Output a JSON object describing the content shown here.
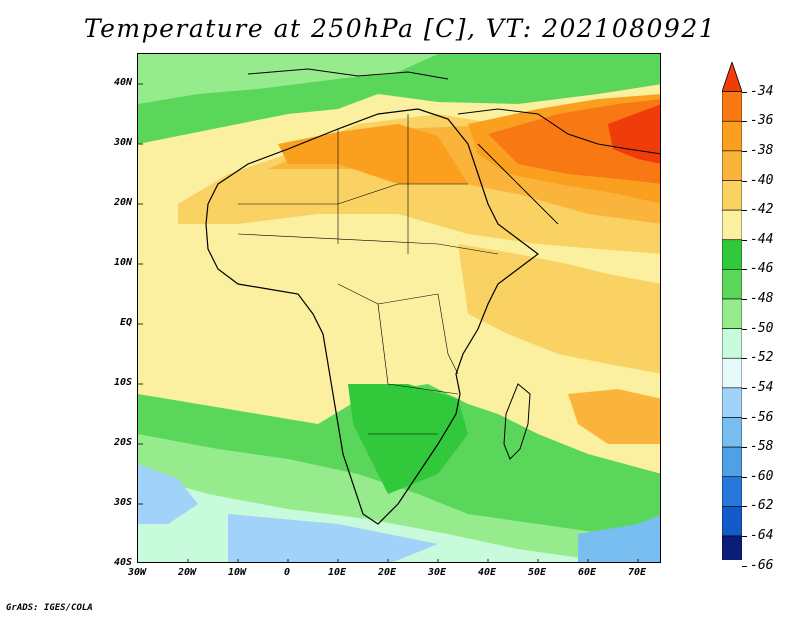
{
  "title": "Temperature at 250hPa [C], VT: 2021080921",
  "footer": "GrADS: IGES/COLA",
  "map": {
    "lat_labels": [
      "40N",
      "30N",
      "20N",
      "10N",
      "EQ",
      "10S",
      "20S",
      "30S",
      "40S"
    ],
    "lon_labels": [
      "30W",
      "20W",
      "10W",
      "0",
      "10E",
      "20E",
      "30E",
      "40E",
      "50E",
      "60E",
      "70E"
    ],
    "lat_range": [
      -40,
      45
    ],
    "lon_range": [
      -30,
      75
    ]
  },
  "colorbar": {
    "labels": [
      "-34",
      "-36",
      "-38",
      "-40",
      "-42",
      "-44",
      "-46",
      "-48",
      "-50",
      "-52",
      "-54",
      "-56",
      "-58",
      "-60",
      "-62",
      "-64",
      "-66"
    ],
    "colors": [
      "#f03c0a",
      "#f87814",
      "#faa01e",
      "#fab43c",
      "#fad264",
      "#faf0a0",
      "#32c83c",
      "#5ad75a",
      "#96eb8c",
      "#c8fadc",
      "#e6fafa",
      "#a0d2fa",
      "#78bef0",
      "#50a0e6",
      "#2878dc",
      "#145ac8",
      "#0a1e78",
      "#dcdcfa"
    ]
  },
  "legend": {
    "top_color": "#f03c0a",
    "bottom_color": "#e6e6fa"
  }
}
